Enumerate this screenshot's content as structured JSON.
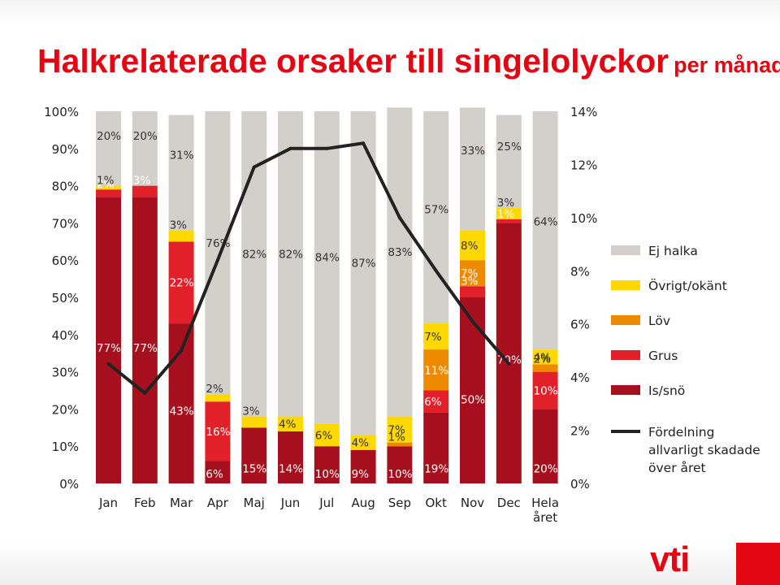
{
  "header": {
    "title": "Halkrelaterade orsaker till singelolyckor",
    "subtitle": "per månad"
  },
  "logo": {
    "text": "vti"
  },
  "colors": {
    "ej_halka": "#d3cfca",
    "ovrigt": "#ffd800",
    "lov": "#ee8a00",
    "grus": "#e2202a",
    "is_sno": "#a6101e",
    "line": "#222222",
    "text_white": "#ffffff",
    "text_dark": "#333333"
  },
  "chart_data": {
    "type": "bar",
    "stacked": true,
    "categories": [
      "Jan",
      "Feb",
      "Mar",
      "Apr",
      "Maj",
      "Jun",
      "Jul",
      "Aug",
      "Sep",
      "Okt",
      "Nov",
      "Dec",
      "Hela året"
    ],
    "ylim_left": [
      0,
      100
    ],
    "left_ticks": [
      "0%",
      "10%",
      "20%",
      "30%",
      "40%",
      "50%",
      "60%",
      "70%",
      "80%",
      "90%",
      "100%"
    ],
    "ylim_right": [
      0,
      14
    ],
    "right_ticks": [
      "0%",
      "2%",
      "4%",
      "6%",
      "8%",
      "10%",
      "12%",
      "14%"
    ],
    "series": [
      {
        "name": "Is/snö",
        "key": "is_sno",
        "values": [
          77,
          77,
          43,
          6,
          15,
          14,
          10,
          9,
          10,
          19,
          50,
          70,
          20
        ],
        "labels": [
          "77%",
          "77%",
          "43%",
          "6%",
          "15%",
          "14%",
          "10%",
          "9%",
          "10%",
          "19%",
          "50%",
          "70%",
          "20%"
        ]
      },
      {
        "name": "Grus",
        "key": "grus",
        "values": [
          2,
          3,
          22,
          16,
          0,
          0,
          0,
          0,
          0,
          6,
          3,
          1,
          10
        ],
        "labels": [
          "2%",
          "3%",
          "22%",
          "16%",
          "",
          "",
          "",
          "",
          "",
          "6%",
          "3%",
          "1%",
          "10%"
        ]
      },
      {
        "name": "Löv",
        "key": "lov",
        "values": [
          0,
          0,
          0,
          0,
          0,
          0,
          0,
          0,
          1,
          11,
          7,
          0,
          2
        ],
        "labels": [
          "",
          "",
          "",
          "",
          "",
          "",
          "",
          "",
          "1%",
          "11%",
          "7%",
          "",
          "2%"
        ]
      },
      {
        "name": "Övrigt/okänt",
        "key": "ovrigt",
        "values": [
          1,
          0,
          3,
          2,
          3,
          4,
          6,
          4,
          7,
          7,
          8,
          3,
          4
        ],
        "labels": [
          "1%",
          "",
          "3%",
          "2%",
          "3%",
          "4%",
          "6%",
          "4%",
          "7%",
          "7%",
          "8%",
          "3%",
          "4%"
        ]
      },
      {
        "name": "Ej halka",
        "key": "ej_halka",
        "values": [
          20,
          20,
          31,
          76,
          82,
          82,
          84,
          87,
          83,
          57,
          33,
          25,
          64
        ],
        "labels": [
          "20%",
          "20%",
          "31%",
          "76%",
          "82%",
          "82%",
          "84%",
          "87%",
          "83%",
          "57%",
          "33%",
          "25%",
          "64%"
        ]
      }
    ],
    "line": {
      "name": "Fördelning allvarligt skadade över året",
      "axis": "right",
      "values": [
        4.5,
        3.4,
        5.0,
        8.4,
        11.9,
        12.6,
        12.6,
        12.8,
        10.0,
        8.0,
        6.1,
        4.5
      ]
    },
    "legend": {
      "position": "right",
      "items": [
        {
          "key": "ej_halka",
          "label": "Ej halka",
          "kind": "box"
        },
        {
          "key": "ovrigt",
          "label": "Övrigt/okänt",
          "kind": "box"
        },
        {
          "key": "lov",
          "label": "Löv",
          "kind": "box"
        },
        {
          "key": "grus",
          "label": "Grus",
          "kind": "box"
        },
        {
          "key": "is_sno",
          "label": "Is/snö",
          "kind": "box"
        },
        {
          "key": "line",
          "label": "Fördelning allvarligt skadade över året",
          "kind": "line",
          "lines": [
            "Fördelning",
            "allvarligt skadade",
            "över året"
          ]
        }
      ]
    }
  }
}
